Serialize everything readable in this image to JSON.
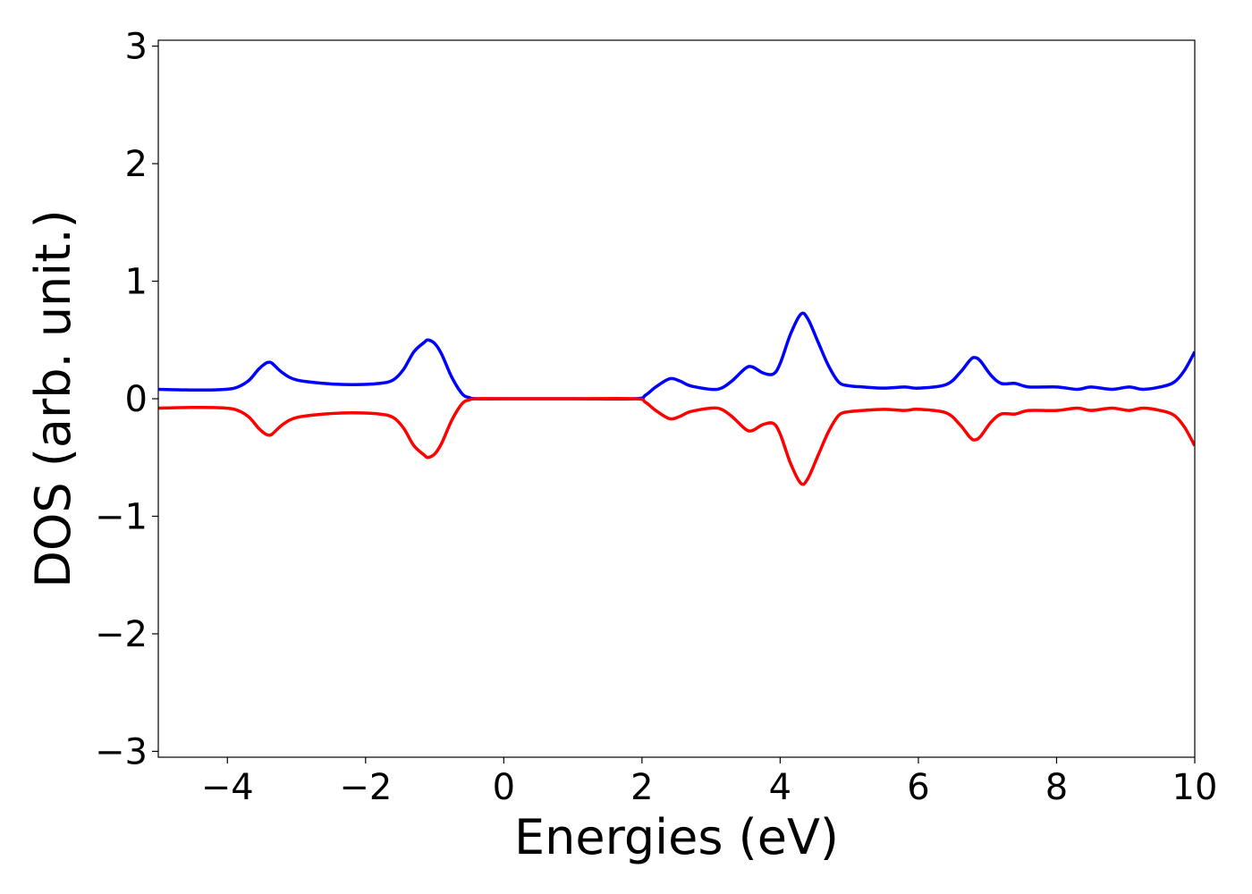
{
  "chart_data": {
    "type": "line",
    "title": "",
    "xlabel": "Energies (eV)",
    "ylabel": "DOS (arb. unit.)",
    "xlim": [
      -5,
      10
    ],
    "ylim": [
      -3.05,
      3.05
    ],
    "xticks": [
      -4,
      -2,
      0,
      2,
      4,
      6,
      8,
      10
    ],
    "xtick_labels": [
      "−4",
      "−2",
      "0",
      "2",
      "4",
      "6",
      "8",
      "10"
    ],
    "yticks": [
      -3,
      -2,
      -1,
      0,
      1,
      2,
      3
    ],
    "ytick_labels": [
      "−3",
      "−2",
      "−1",
      "0",
      "1",
      "2",
      "3"
    ],
    "grid": false,
    "legend": "none",
    "series": [
      {
        "color": "#0000ff",
        "x": [
          -5.0,
          -4.6,
          -4.2,
          -3.9,
          -3.7,
          -3.55,
          -3.45,
          -3.4,
          -3.35,
          -3.2,
          -3.0,
          -2.6,
          -2.2,
          -1.8,
          -1.6,
          -1.45,
          -1.3,
          -1.15,
          -1.1,
          -1.0,
          -0.9,
          -0.75,
          -0.6,
          -0.5,
          -0.4,
          0.0,
          1.0,
          1.9,
          2.05,
          2.2,
          2.4,
          2.55,
          2.7,
          3.0,
          3.15,
          3.3,
          3.5,
          3.6,
          3.75,
          3.9,
          4.0,
          4.15,
          4.3,
          4.4,
          4.55,
          4.7,
          4.85,
          5.0,
          5.2,
          5.5,
          5.8,
          6.0,
          6.4,
          6.6,
          6.75,
          6.82,
          6.9,
          7.05,
          7.2,
          7.4,
          7.6,
          8.0,
          8.3,
          8.5,
          8.8,
          9.05,
          9.25,
          9.5,
          9.7,
          9.85,
          10.0
        ],
        "y": [
          0.08,
          0.075,
          0.075,
          0.09,
          0.15,
          0.25,
          0.3,
          0.31,
          0.3,
          0.22,
          0.16,
          0.13,
          0.12,
          0.13,
          0.16,
          0.25,
          0.4,
          0.48,
          0.5,
          0.47,
          0.38,
          0.18,
          0.04,
          0.01,
          0.0,
          0.0,
          0.0,
          0.0,
          0.03,
          0.1,
          0.17,
          0.15,
          0.11,
          0.08,
          0.09,
          0.15,
          0.26,
          0.27,
          0.22,
          0.21,
          0.3,
          0.55,
          0.72,
          0.68,
          0.48,
          0.28,
          0.14,
          0.11,
          0.1,
          0.09,
          0.1,
          0.09,
          0.12,
          0.22,
          0.33,
          0.35,
          0.32,
          0.2,
          0.13,
          0.13,
          0.1,
          0.1,
          0.08,
          0.1,
          0.08,
          0.1,
          0.08,
          0.1,
          0.14,
          0.24,
          0.4
        ]
      },
      {
        "color": "#ff0000",
        "x": [
          -5.0,
          -4.6,
          -4.2,
          -3.9,
          -3.7,
          -3.55,
          -3.45,
          -3.4,
          -3.35,
          -3.2,
          -3.0,
          -2.6,
          -2.2,
          -1.8,
          -1.6,
          -1.45,
          -1.3,
          -1.15,
          -1.1,
          -1.0,
          -0.9,
          -0.75,
          -0.6,
          -0.5,
          -0.4,
          0.0,
          1.0,
          1.9,
          2.05,
          2.2,
          2.4,
          2.55,
          2.7,
          3.0,
          3.15,
          3.3,
          3.5,
          3.6,
          3.75,
          3.9,
          4.0,
          4.15,
          4.3,
          4.4,
          4.55,
          4.7,
          4.85,
          5.0,
          5.2,
          5.5,
          5.8,
          6.0,
          6.4,
          6.6,
          6.75,
          6.82,
          6.9,
          7.05,
          7.2,
          7.4,
          7.6,
          8.0,
          8.3,
          8.5,
          8.8,
          9.05,
          9.25,
          9.5,
          9.7,
          9.85,
          10.0
        ],
        "y": [
          -0.08,
          -0.075,
          -0.075,
          -0.09,
          -0.15,
          -0.25,
          -0.3,
          -0.31,
          -0.3,
          -0.22,
          -0.16,
          -0.13,
          -0.12,
          -0.13,
          -0.16,
          -0.25,
          -0.4,
          -0.48,
          -0.5,
          -0.47,
          -0.38,
          -0.18,
          -0.04,
          -0.01,
          0.0,
          0.0,
          0.0,
          0.0,
          -0.03,
          -0.1,
          -0.17,
          -0.15,
          -0.11,
          -0.08,
          -0.09,
          -0.15,
          -0.26,
          -0.27,
          -0.22,
          -0.21,
          -0.3,
          -0.55,
          -0.72,
          -0.68,
          -0.48,
          -0.28,
          -0.14,
          -0.11,
          -0.1,
          -0.09,
          -0.1,
          -0.09,
          -0.12,
          -0.22,
          -0.33,
          -0.35,
          -0.32,
          -0.2,
          -0.13,
          -0.13,
          -0.1,
          -0.1,
          -0.08,
          -0.1,
          -0.08,
          -0.1,
          -0.08,
          -0.1,
          -0.14,
          -0.24,
          -0.4
        ]
      }
    ]
  }
}
